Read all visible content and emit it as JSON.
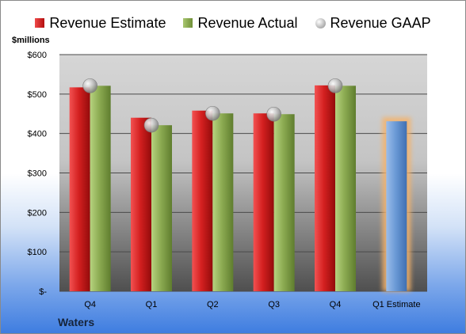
{
  "legend": [
    {
      "label": "Revenue Estimate",
      "color": "#c51a1a",
      "kind": "bar"
    },
    {
      "label": "Revenue Actual",
      "color": "#86a84a",
      "kind": "bar"
    },
    {
      "label": "Revenue GAAP",
      "color": "#b8b8b8",
      "kind": "marker"
    }
  ],
  "chart_data": {
    "type": "bar",
    "title": "",
    "ylabel": "$millions",
    "xlabel": "Waters",
    "ylim": [
      0,
      600
    ],
    "yticks": [
      0,
      100,
      200,
      300,
      400,
      500,
      600
    ],
    "ytick_labels": [
      "$-",
      "$100",
      "$200",
      "$300",
      "$400",
      "$500",
      "$600"
    ],
    "categories": [
      "Q4",
      "Q1",
      "Q2",
      "Q3",
      "Q4",
      "Q1 Estimate"
    ],
    "series": [
      {
        "name": "Revenue Estimate",
        "type": "bar",
        "color": "#c51a1a",
        "values": [
          517,
          440,
          458,
          451,
          522,
          null
        ]
      },
      {
        "name": "Revenue Actual",
        "type": "bar",
        "color": "#86a84a",
        "values": [
          521,
          421,
          451,
          449,
          521,
          431
        ]
      },
      {
        "name": "Revenue GAAP",
        "type": "marker",
        "color": "#b8b8b8",
        "values": [
          521,
          421,
          451,
          449,
          521,
          null
        ]
      }
    ],
    "highlight": {
      "category": "Q1 Estimate",
      "color": "#6b9ad6",
      "glow": "#f4b26a"
    },
    "grid": true,
    "legend_position": "top"
  }
}
